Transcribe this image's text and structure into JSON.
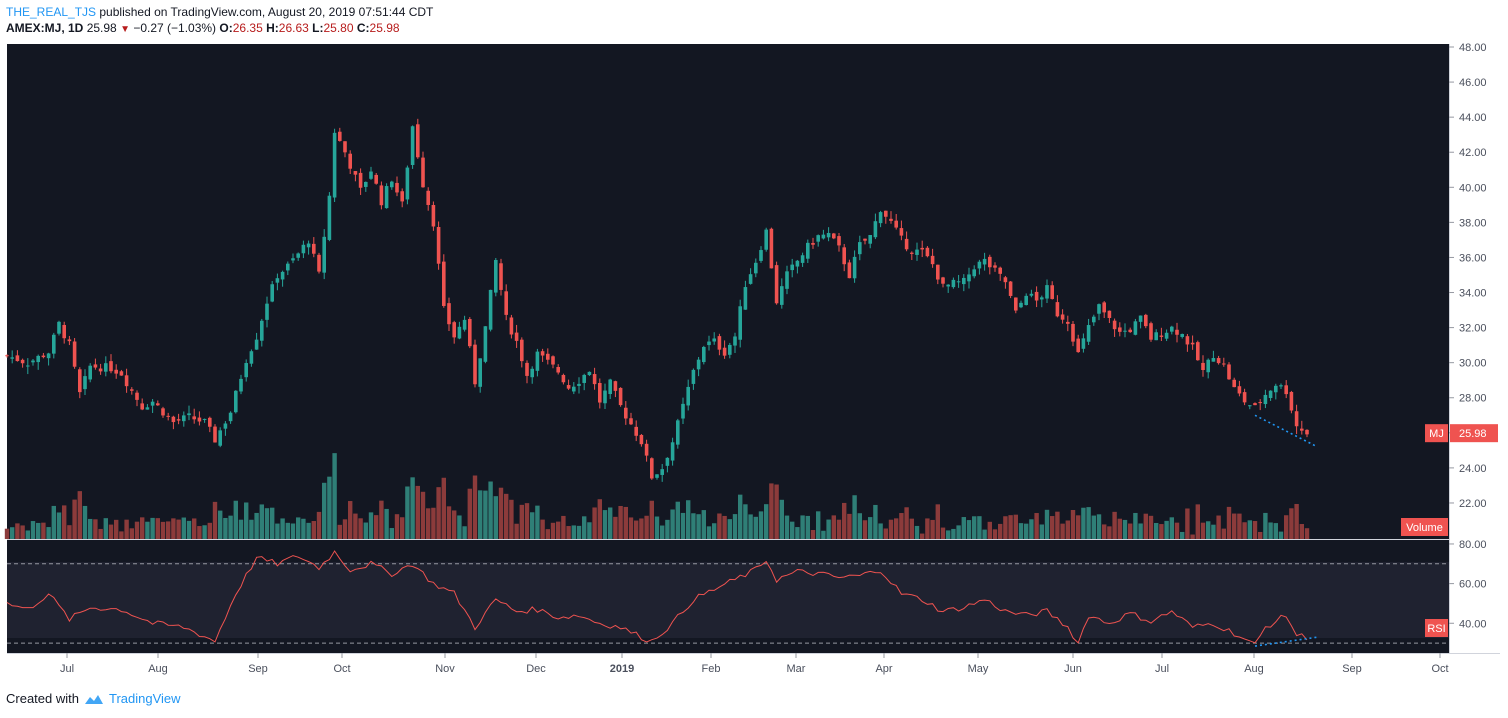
{
  "header": {
    "user": "THE_REAL_TJS",
    "published": "published on TradingView.com, August 20, 2019 07:51:44 CDT",
    "symbol": "AMEX:MJ, 1D",
    "last": "25.98",
    "change_arrow": "▼",
    "change": "−0.27 (−1.03%)",
    "o_label": "O:",
    "o": "26.35",
    "h_label": "H:",
    "h": "26.63",
    "l_label": "L:",
    "l": "25.80",
    "c_label": "C:",
    "c": "25.98"
  },
  "footer": {
    "created": "Created with",
    "brand": "TradingView",
    "logo_icon": "tradingview-cloud-icon"
  },
  "colors": {
    "bg": "#131722",
    "up": "#26a69a",
    "down": "#ef5350",
    "vol_up": "#2f7f77",
    "vol_down": "#8c3b3b",
    "rsi": "#ef5350",
    "badge": "#ef5350",
    "trend": "#2196f3"
  },
  "chart_data": {
    "type": "candlestick",
    "price_axis": {
      "ticks": [
        "48.00",
        "46.00",
        "44.00",
        "42.00",
        "40.00",
        "38.00",
        "36.00",
        "34.00",
        "32.00",
        "30.00",
        "28.00",
        "26.00",
        "24.00",
        "22.00"
      ],
      "range": [
        21.2,
        48.0
      ]
    },
    "rsi_axis": {
      "ticks": [
        "80.00",
        "60.00",
        "40.00"
      ],
      "range": [
        25,
        82
      ],
      "levels": [
        70,
        30
      ]
    },
    "x_labels": [
      "Jul",
      "Aug",
      "Sep",
      "Oct",
      "Nov",
      "Dec",
      "2019",
      "Feb",
      "Mar",
      "Apr",
      "May",
      "Jun",
      "Jul",
      "Aug",
      "Sep",
      "Oct"
    ],
    "last_price_badge": {
      "symbol": "MJ",
      "value": "25.98"
    },
    "volume_badge": "Volume",
    "rsi_badge": "RSI",
    "price_path": [
      [
        0,
        30.4
      ],
      [
        4,
        30.0
      ],
      [
        8,
        30.6
      ],
      [
        10,
        32.2
      ],
      [
        12,
        31.0
      ],
      [
        14,
        28.2
      ],
      [
        16,
        29.8
      ],
      [
        20,
        29.7
      ],
      [
        22,
        29.4
      ],
      [
        24,
        28.4
      ],
      [
        26,
        27.5
      ],
      [
        28,
        27.8
      ],
      [
        30,
        27.2
      ],
      [
        32,
        26.6
      ],
      [
        35,
        26.9
      ],
      [
        38,
        26.6
      ],
      [
        40,
        25.6
      ],
      [
        43,
        27.2
      ],
      [
        46,
        30.2
      ],
      [
        48,
        31.5
      ],
      [
        50,
        33.5
      ],
      [
        52,
        35.0
      ],
      [
        54,
        35.5
      ],
      [
        56,
        36.2
      ],
      [
        58,
        37.0
      ],
      [
        60,
        35.0
      ],
      [
        62,
        39.5
      ],
      [
        63,
        43.2
      ],
      [
        65,
        42.0
      ],
      [
        68,
        39.8
      ],
      [
        70,
        41.0
      ],
      [
        72,
        39.2
      ],
      [
        74,
        40.5
      ],
      [
        76,
        39.0
      ],
      [
        78,
        43.5
      ],
      [
        80,
        40.2
      ],
      [
        82,
        38.0
      ],
      [
        84,
        33.0
      ],
      [
        86,
        31.5
      ],
      [
        88,
        32.5
      ],
      [
        90,
        28.9
      ],
      [
        92,
        32.0
      ],
      [
        94,
        35.8
      ],
      [
        96,
        32.5
      ],
      [
        98,
        31.2
      ],
      [
        100,
        29.3
      ],
      [
        102,
        30.5
      ],
      [
        104,
        30.0
      ],
      [
        106,
        29.5
      ],
      [
        108,
        28.6
      ],
      [
        110,
        29.0
      ],
      [
        112,
        29.6
      ],
      [
        114,
        27.8
      ],
      [
        116,
        28.8
      ],
      [
        118,
        27.5
      ],
      [
        120,
        26.5
      ],
      [
        122,
        25.5
      ],
      [
        124,
        23.5
      ],
      [
        126,
        24.0
      ],
      [
        128,
        25.5
      ],
      [
        130,
        27.5
      ],
      [
        132,
        29.5
      ],
      [
        134,
        31.0
      ],
      [
        136,
        31.2
      ],
      [
        138,
        30.6
      ],
      [
        140,
        31.5
      ],
      [
        142,
        34.5
      ],
      [
        144,
        35.8
      ],
      [
        146,
        37.5
      ],
      [
        148,
        33.5
      ],
      [
        150,
        35.0
      ],
      [
        152,
        35.8
      ],
      [
        154,
        36.6
      ],
      [
        156,
        37.2
      ],
      [
        158,
        37.3
      ],
      [
        160,
        36.5
      ],
      [
        162,
        35.0
      ],
      [
        164,
        36.7
      ],
      [
        166,
        37.2
      ],
      [
        168,
        38.8
      ],
      [
        170,
        38.0
      ],
      [
        172,
        37.0
      ],
      [
        174,
        36.4
      ],
      [
        176,
        36.3
      ],
      [
        178,
        35.6
      ],
      [
        180,
        34.3
      ],
      [
        182,
        34.5
      ],
      [
        184,
        34.6
      ],
      [
        186,
        35.5
      ],
      [
        188,
        35.8
      ],
      [
        190,
        35.2
      ],
      [
        192,
        34.6
      ],
      [
        194,
        32.8
      ],
      [
        196,
        34.0
      ],
      [
        198,
        33.5
      ],
      [
        200,
        34.2
      ],
      [
        202,
        32.8
      ],
      [
        204,
        32.4
      ],
      [
        206,
        30.5
      ],
      [
        208,
        32.0
      ],
      [
        210,
        33.2
      ],
      [
        212,
        32.4
      ],
      [
        214,
        31.7
      ],
      [
        216,
        31.9
      ],
      [
        218,
        32.5
      ],
      [
        220,
        31.4
      ],
      [
        222,
        31.7
      ],
      [
        224,
        32.0
      ],
      [
        226,
        31.6
      ],
      [
        228,
        30.8
      ],
      [
        230,
        29.5
      ],
      [
        232,
        30.5
      ],
      [
        234,
        29.8
      ],
      [
        236,
        28.5
      ],
      [
        238,
        27.8
      ],
      [
        240,
        27.4
      ],
      [
        242,
        28.2
      ],
      [
        244,
        28.8
      ],
      [
        246,
        28.4
      ],
      [
        248,
        26.4
      ],
      [
        250,
        25.98
      ]
    ],
    "rsi_path": [
      [
        0,
        50
      ],
      [
        4,
        47
      ],
      [
        8,
        55
      ],
      [
        12,
        42
      ],
      [
        16,
        48
      ],
      [
        22,
        47
      ],
      [
        28,
        40
      ],
      [
        34,
        38
      ],
      [
        40,
        31
      ],
      [
        44,
        55
      ],
      [
        48,
        73
      ],
      [
        52,
        70
      ],
      [
        56,
        74
      ],
      [
        60,
        68
      ],
      [
        63,
        76
      ],
      [
        66,
        67
      ],
      [
        70,
        70
      ],
      [
        74,
        65
      ],
      [
        78,
        70
      ],
      [
        82,
        60
      ],
      [
        86,
        55
      ],
      [
        90,
        38
      ],
      [
        94,
        52
      ],
      [
        98,
        46
      ],
      [
        102,
        47
      ],
      [
        106,
        43
      ],
      [
        110,
        44
      ],
      [
        114,
        40
      ],
      [
        118,
        38
      ],
      [
        122,
        33
      ],
      [
        124,
        31
      ],
      [
        128,
        40
      ],
      [
        132,
        52
      ],
      [
        136,
        57
      ],
      [
        140,
        62
      ],
      [
        144,
        67
      ],
      [
        146,
        72
      ],
      [
        148,
        62
      ],
      [
        152,
        66
      ],
      [
        156,
        65
      ],
      [
        160,
        63
      ],
      [
        164,
        64
      ],
      [
        168,
        67
      ],
      [
        172,
        55
      ],
      [
        176,
        52
      ],
      [
        180,
        46
      ],
      [
        184,
        48
      ],
      [
        188,
        52
      ],
      [
        192,
        46
      ],
      [
        196,
        44
      ],
      [
        200,
        46
      ],
      [
        204,
        38
      ],
      [
        206,
        30
      ],
      [
        208,
        44
      ],
      [
        212,
        40
      ],
      [
        216,
        45
      ],
      [
        220,
        41
      ],
      [
        224,
        46
      ],
      [
        228,
        38
      ],
      [
        232,
        40
      ],
      [
        236,
        35
      ],
      [
        240,
        29
      ],
      [
        242,
        38
      ],
      [
        246,
        44
      ],
      [
        248,
        34
      ],
      [
        250,
        33
      ]
    ],
    "rsi_trend": [
      [
        240,
        28.5
      ],
      [
        252,
        33
      ]
    ],
    "price_trend": [
      [
        240,
        27.0
      ],
      [
        252,
        25.2
      ]
    ]
  }
}
